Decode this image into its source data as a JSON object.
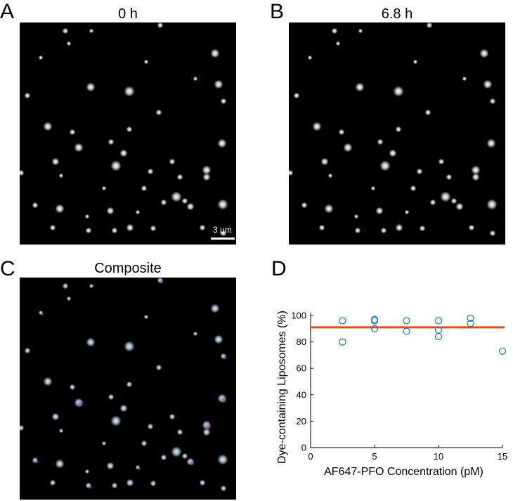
{
  "panels": {
    "a": {
      "letter": "A",
      "title": "0 h"
    },
    "b": {
      "letter": "B",
      "title": "6.8 h"
    },
    "c": {
      "letter": "C",
      "title": "Composite"
    },
    "d": {
      "letter": "D"
    }
  },
  "scale_bar": {
    "label": "3 μm"
  },
  "colors": {
    "marker": "#1f77b4",
    "fit_line": "#d95319",
    "composite_spot": "#cfe8ff",
    "composite_magenta": "#b04bb0"
  },
  "chart_data": {
    "type": "scatter",
    "xlabel": "AF647-PFO Concentration (pM)",
    "ylabel": "Dye-containing Liposomes (%)",
    "xlim": [
      0,
      15
    ],
    "ylim": [
      0,
      100
    ],
    "xticks": [
      "0",
      "5",
      "10",
      "15"
    ],
    "yticks": [
      "0",
      "20",
      "40",
      "60",
      "80",
      "100"
    ],
    "points": [
      {
        "x": 2.5,
        "y": 96
      },
      {
        "x": 2.5,
        "y": 80
      },
      {
        "x": 5,
        "y": 97
      },
      {
        "x": 5,
        "y": 96
      },
      {
        "x": 5,
        "y": 90
      },
      {
        "x": 7.5,
        "y": 96
      },
      {
        "x": 7.5,
        "y": 88
      },
      {
        "x": 10,
        "y": 96
      },
      {
        "x": 10,
        "y": 89
      },
      {
        "x": 10,
        "y": 84
      },
      {
        "x": 12.5,
        "y": 98
      },
      {
        "x": 12.5,
        "y": 94
      },
      {
        "x": 15,
        "y": 73
      }
    ],
    "mean_line": 91
  }
}
